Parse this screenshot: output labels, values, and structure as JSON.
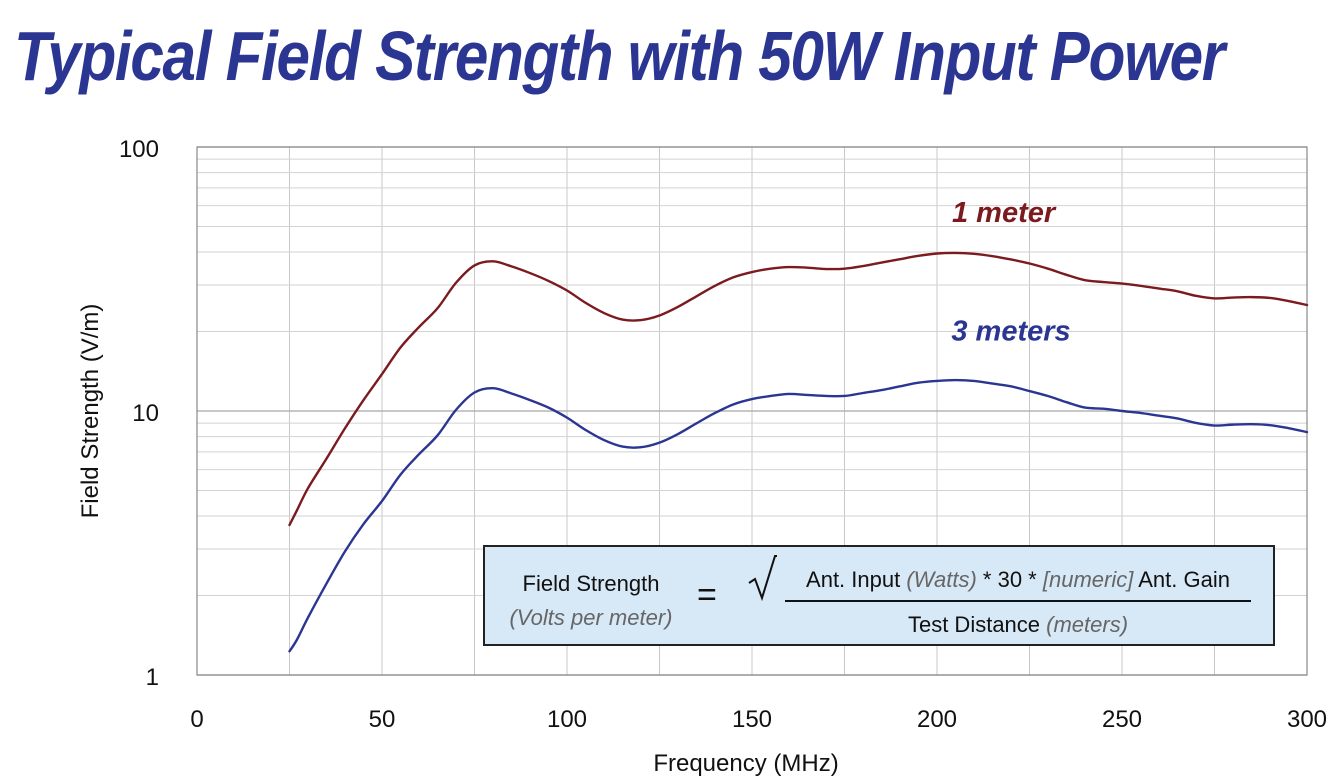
{
  "chart_data": {
    "type": "line",
    "title": "Typical Field Strength with 50W Input Power",
    "xlabel": "Frequency (MHz)",
    "ylabel": "Field Strength (V/m)",
    "xlim": [
      0,
      300
    ],
    "ylim": [
      1,
      100
    ],
    "yscale": "log",
    "x_ticks": [
      0,
      50,
      100,
      150,
      200,
      250,
      300
    ],
    "x_tick_labels": [
      "0",
      "50",
      "100",
      "150",
      "200",
      "250",
      "300"
    ],
    "y_ticks": [
      1,
      10,
      100
    ],
    "y_tick_labels": [
      "1",
      "10",
      "100"
    ],
    "grid": true,
    "series": [
      {
        "name": "1 meter",
        "color": "#7b1a1f",
        "x": [
          25,
          27,
          30,
          35,
          40,
          45,
          50,
          55,
          60,
          65,
          70,
          75,
          80,
          85,
          90,
          95,
          100,
          105,
          110,
          115,
          120,
          125,
          130,
          135,
          140,
          145,
          150,
          155,
          160,
          165,
          170,
          175,
          180,
          185,
          190,
          195,
          200,
          205,
          210,
          215,
          220,
          225,
          230,
          235,
          240,
          245,
          250,
          255,
          260,
          265,
          270,
          275,
          280,
          285,
          290,
          295,
          300
        ],
        "y": [
          3.7,
          4.2,
          5.1,
          6.6,
          8.6,
          11.0,
          13.8,
          17.4,
          20.8,
          24.5,
          30.6,
          35.6,
          36.9,
          35.3,
          33.3,
          31.1,
          28.6,
          25.7,
          23.5,
          22.2,
          22.1,
          23.0,
          24.8,
          27.2,
          29.8,
          32.1,
          33.6,
          34.6,
          35.1,
          34.9,
          34.5,
          34.6,
          35.4,
          36.5,
          37.6,
          38.7,
          39.5,
          39.7,
          39.4,
          38.6,
          37.5,
          36.2,
          34.6,
          32.8,
          31.3,
          30.8,
          30.4,
          29.8,
          29.1,
          28.4,
          27.3,
          26.7,
          26.9,
          27.0,
          26.8,
          26.1,
          25.2
        ]
      },
      {
        "name": "3 meters",
        "color": "#2b3592",
        "x": [
          25,
          27,
          30,
          35,
          40,
          45,
          50,
          55,
          60,
          65,
          70,
          75,
          80,
          85,
          90,
          95,
          100,
          105,
          110,
          115,
          120,
          125,
          130,
          135,
          140,
          145,
          150,
          155,
          160,
          165,
          170,
          175,
          180,
          185,
          190,
          195,
          200,
          205,
          210,
          215,
          220,
          225,
          230,
          235,
          240,
          245,
          250,
          255,
          260,
          265,
          270,
          275,
          280,
          285,
          290,
          295,
          300
        ],
        "y": [
          1.23,
          1.36,
          1.65,
          2.22,
          2.94,
          3.73,
          4.56,
          5.74,
          6.86,
          8.08,
          10.1,
          11.75,
          12.2,
          11.65,
          11.0,
          10.3,
          9.44,
          8.48,
          7.76,
          7.33,
          7.29,
          7.59,
          8.18,
          8.98,
          9.83,
          10.6,
          11.1,
          11.4,
          11.6,
          11.5,
          11.4,
          11.4,
          11.7,
          12.0,
          12.4,
          12.8,
          13.0,
          13.1,
          13.0,
          12.7,
          12.4,
          11.9,
          11.4,
          10.8,
          10.3,
          10.2,
          10.0,
          9.83,
          9.6,
          9.37,
          9.01,
          8.81,
          8.88,
          8.91,
          8.84,
          8.61,
          8.32
        ]
      }
    ],
    "annotations": [
      {
        "text": "1 meter",
        "series": "1 meter",
        "x": 218,
        "y": 52
      },
      {
        "text": "3 meters",
        "series": "3 meters",
        "x": 220,
        "y": 18.5
      }
    ]
  },
  "formula": {
    "lhs_label": "Field Strength",
    "lhs_unit": "(Volts per meter)",
    "equals": "=",
    "num_part1": "Ant. Input ",
    "num_unit1": "(Watts)",
    "num_part2": " * 30 * ",
    "num_unit2": "[numeric]",
    "num_part3": " Ant. Gain",
    "den_part1": "Test Distance ",
    "den_unit1": "(meters)"
  }
}
